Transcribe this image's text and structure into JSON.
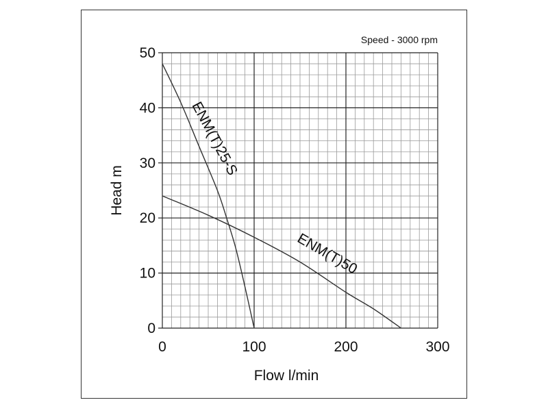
{
  "chart_data": {
    "type": "line",
    "title": "",
    "note": "Speed - 3000 rpm",
    "xlabel": "Flow l/min",
    "ylabel": "Head m",
    "xlim": [
      0,
      300
    ],
    "ylim": [
      0,
      50
    ],
    "xticks": [
      0,
      100,
      200,
      300
    ],
    "yticks": [
      0,
      10,
      20,
      30,
      40,
      50
    ],
    "x_tick_labels": [
      "0",
      "100",
      "200",
      "300"
    ],
    "y_tick_labels": [
      "0",
      "10",
      "20",
      "30",
      "40",
      "50"
    ],
    "grid": {
      "major_x": 100,
      "major_y": 10,
      "minor_x": 10,
      "minor_y": 2
    },
    "series": [
      {
        "name": "ENM(T)25-S",
        "x": [
          0,
          20,
          40,
          60,
          70,
          80,
          90,
          100
        ],
        "y": [
          48,
          41,
          33,
          25,
          20,
          14.5,
          7.5,
          0
        ]
      },
      {
        "name": "ENM(T)50",
        "x": [
          0,
          50,
          100,
          150,
          200,
          230,
          260
        ],
        "y": [
          24,
          20.5,
          16.5,
          12,
          6.5,
          3.5,
          0
        ]
      }
    ]
  }
}
